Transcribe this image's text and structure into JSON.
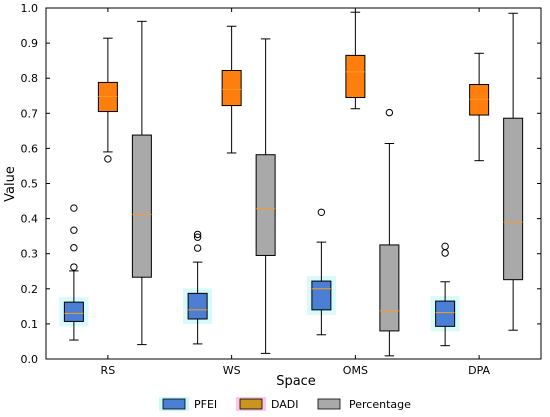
{
  "chart_data": {
    "type": "box",
    "title": "",
    "xlabel": "Space",
    "ylabel": "Value",
    "ylim": [
      0,
      1.0
    ],
    "yticks": [
      0,
      0.1,
      0.2,
      0.3,
      0.4,
      0.5,
      0.6,
      0.7,
      0.8,
      0.9,
      1.0
    ],
    "ytick_labels": [
      "0.0",
      "0.1",
      "0.2",
      "0.3",
      "0.4",
      "0.5",
      "0.6",
      "0.7",
      "0.8",
      "0.9",
      "1.0"
    ],
    "categories": [
      "RS",
      "WS",
      "OMS",
      "DPA"
    ],
    "grid": false,
    "legend_position": "bottom-center",
    "series": [
      {
        "name": "PFEI",
        "color": "#4a7fd4",
        "highlight": "#8ff0f0",
        "boxes": [
          {
            "min": 0.054,
            "q1": 0.107,
            "median": 0.13,
            "q3": 0.162,
            "max": 0.251,
            "outliers": [
              0.262,
              0.317,
              0.367,
              0.43
            ]
          },
          {
            "min": 0.043,
            "q1": 0.114,
            "median": 0.14,
            "q3": 0.187,
            "max": 0.276,
            "outliers": [
              0.316,
              0.347,
              0.355
            ]
          },
          {
            "min": 0.069,
            "q1": 0.14,
            "median": 0.2,
            "q3": 0.222,
            "max": 0.333,
            "outliers": [
              0.418
            ]
          },
          {
            "min": 0.038,
            "q1": 0.093,
            "median": 0.132,
            "q3": 0.165,
            "max": 0.22,
            "outliers": [
              0.302,
              0.321
            ]
          }
        ]
      },
      {
        "name": "DADI",
        "color": "#ff7f0e",
        "highlight": "#ff7f0e",
        "boxes": [
          {
            "min": 0.59,
            "q1": 0.705,
            "median": 0.748,
            "q3": 0.788,
            "max": 0.914,
            "outliers": [
              0.57
            ]
          },
          {
            "min": 0.587,
            "q1": 0.722,
            "median": 0.768,
            "q3": 0.822,
            "max": 0.948,
            "outliers": []
          },
          {
            "min": 0.713,
            "q1": 0.745,
            "median": 0.818,
            "q3": 0.865,
            "max": 0.988,
            "outliers": []
          },
          {
            "min": 0.565,
            "q1": 0.695,
            "median": 0.74,
            "q3": 0.782,
            "max": 0.871,
            "outliers": []
          }
        ]
      },
      {
        "name": "Percentage",
        "color": "#a9a9a9",
        "highlight": "#a9a9a9",
        "boxes": [
          {
            "min": 0.041,
            "q1": 0.233,
            "median": 0.412,
            "q3": 0.638,
            "max": 0.962,
            "outliers": []
          },
          {
            "min": 0.016,
            "q1": 0.295,
            "median": 0.428,
            "q3": 0.582,
            "max": 0.912,
            "outliers": []
          },
          {
            "min": 0.009,
            "q1": 0.08,
            "median": 0.137,
            "q3": 0.325,
            "max": 0.614,
            "outliers": [
              0.702
            ]
          },
          {
            "min": 0.082,
            "q1": 0.226,
            "median": 0.39,
            "q3": 0.686,
            "max": 0.985,
            "outliers": []
          }
        ]
      }
    ],
    "legend": [
      {
        "label": "PFEI",
        "swatch": "#4a7fd4",
        "halo": "#8ff0f0"
      },
      {
        "label": "DADI",
        "swatch": "#c8961e",
        "halo": "#ff7fd0"
      },
      {
        "label": "Percentage",
        "swatch": "#a9a9a9",
        "halo": "#ffffff"
      }
    ],
    "median_color": "#ff9a1e"
  }
}
